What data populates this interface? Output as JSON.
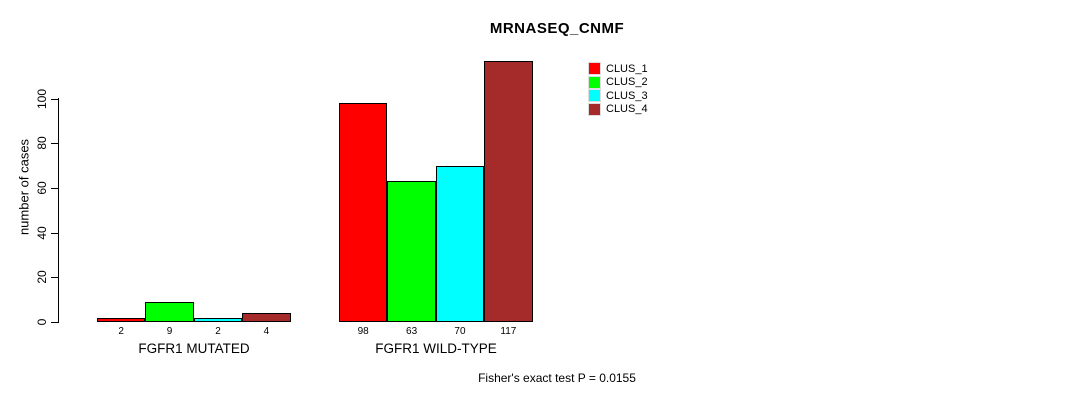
{
  "chart_data": {
    "type": "bar",
    "title": "MRNASEQ_CNMF",
    "ylabel": "number of cases",
    "xlabel": "",
    "groups": [
      "FGFR1 MUTATED",
      "FGFR1 WILD-TYPE"
    ],
    "series": [
      {
        "name": "CLUS_1",
        "color": "#FF0000",
        "values": [
          2,
          98
        ]
      },
      {
        "name": "CLUS_2",
        "color": "#00FF00",
        "values": [
          9,
          63
        ]
      },
      {
        "name": "CLUS_3",
        "color": "#00FFFF",
        "values": [
          2,
          70
        ]
      },
      {
        "name": "CLUS_4",
        "color": "#A52A2A",
        "values": [
          4,
          117
        ]
      }
    ],
    "bar_value_labels": [
      [
        "2",
        "9",
        "2",
        "4"
      ],
      [
        "98",
        "63",
        "70",
        "117"
      ]
    ],
    "yticks": [
      0,
      20,
      40,
      60,
      80,
      100
    ],
    "ylim": [
      0,
      117
    ],
    "grid": false,
    "legend_position": "top-right-inside",
    "annotation": "Fisher's exact test P = 0.0155"
  },
  "colors": {
    "axis": "#000000",
    "bar_border": "#000000",
    "background": "#FFFFFF"
  }
}
